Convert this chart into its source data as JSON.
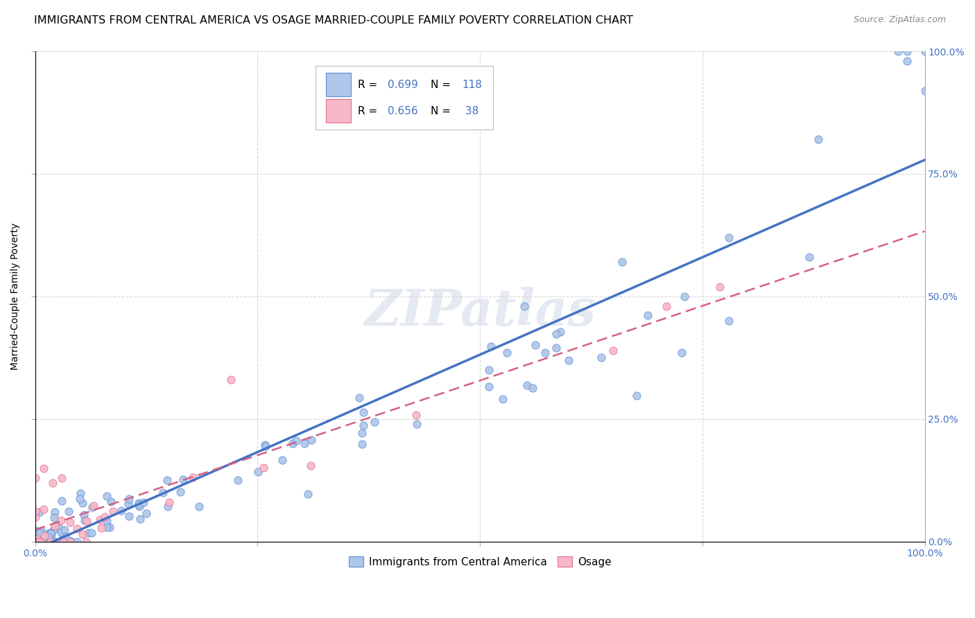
{
  "title": "IMMIGRANTS FROM CENTRAL AMERICA VS OSAGE MARRIED-COUPLE FAMILY POVERTY CORRELATION CHART",
  "source": "Source: ZipAtlas.com",
  "ylabel": "Married-Couple Family Poverty",
  "blue_R": 0.699,
  "blue_N": 118,
  "pink_R": 0.656,
  "pink_N": 38,
  "blue_color": "#aec6e8",
  "blue_edge_color": "#5b8dd9",
  "blue_line_color": "#4472c4",
  "pink_color": "#f7b8c8",
  "pink_edge_color": "#e07090",
  "pink_line_color": "#d46080",
  "legend_labels": [
    "Immigrants from Central America",
    "Osage"
  ],
  "watermark": "ZIPatlas",
  "background_color": "#ffffff",
  "grid_color": "#cccccc",
  "title_fontsize": 11.5,
  "axis_label_fontsize": 10,
  "tick_fontsize": 10,
  "legend_fontsize": 11,
  "source_fontsize": 9
}
